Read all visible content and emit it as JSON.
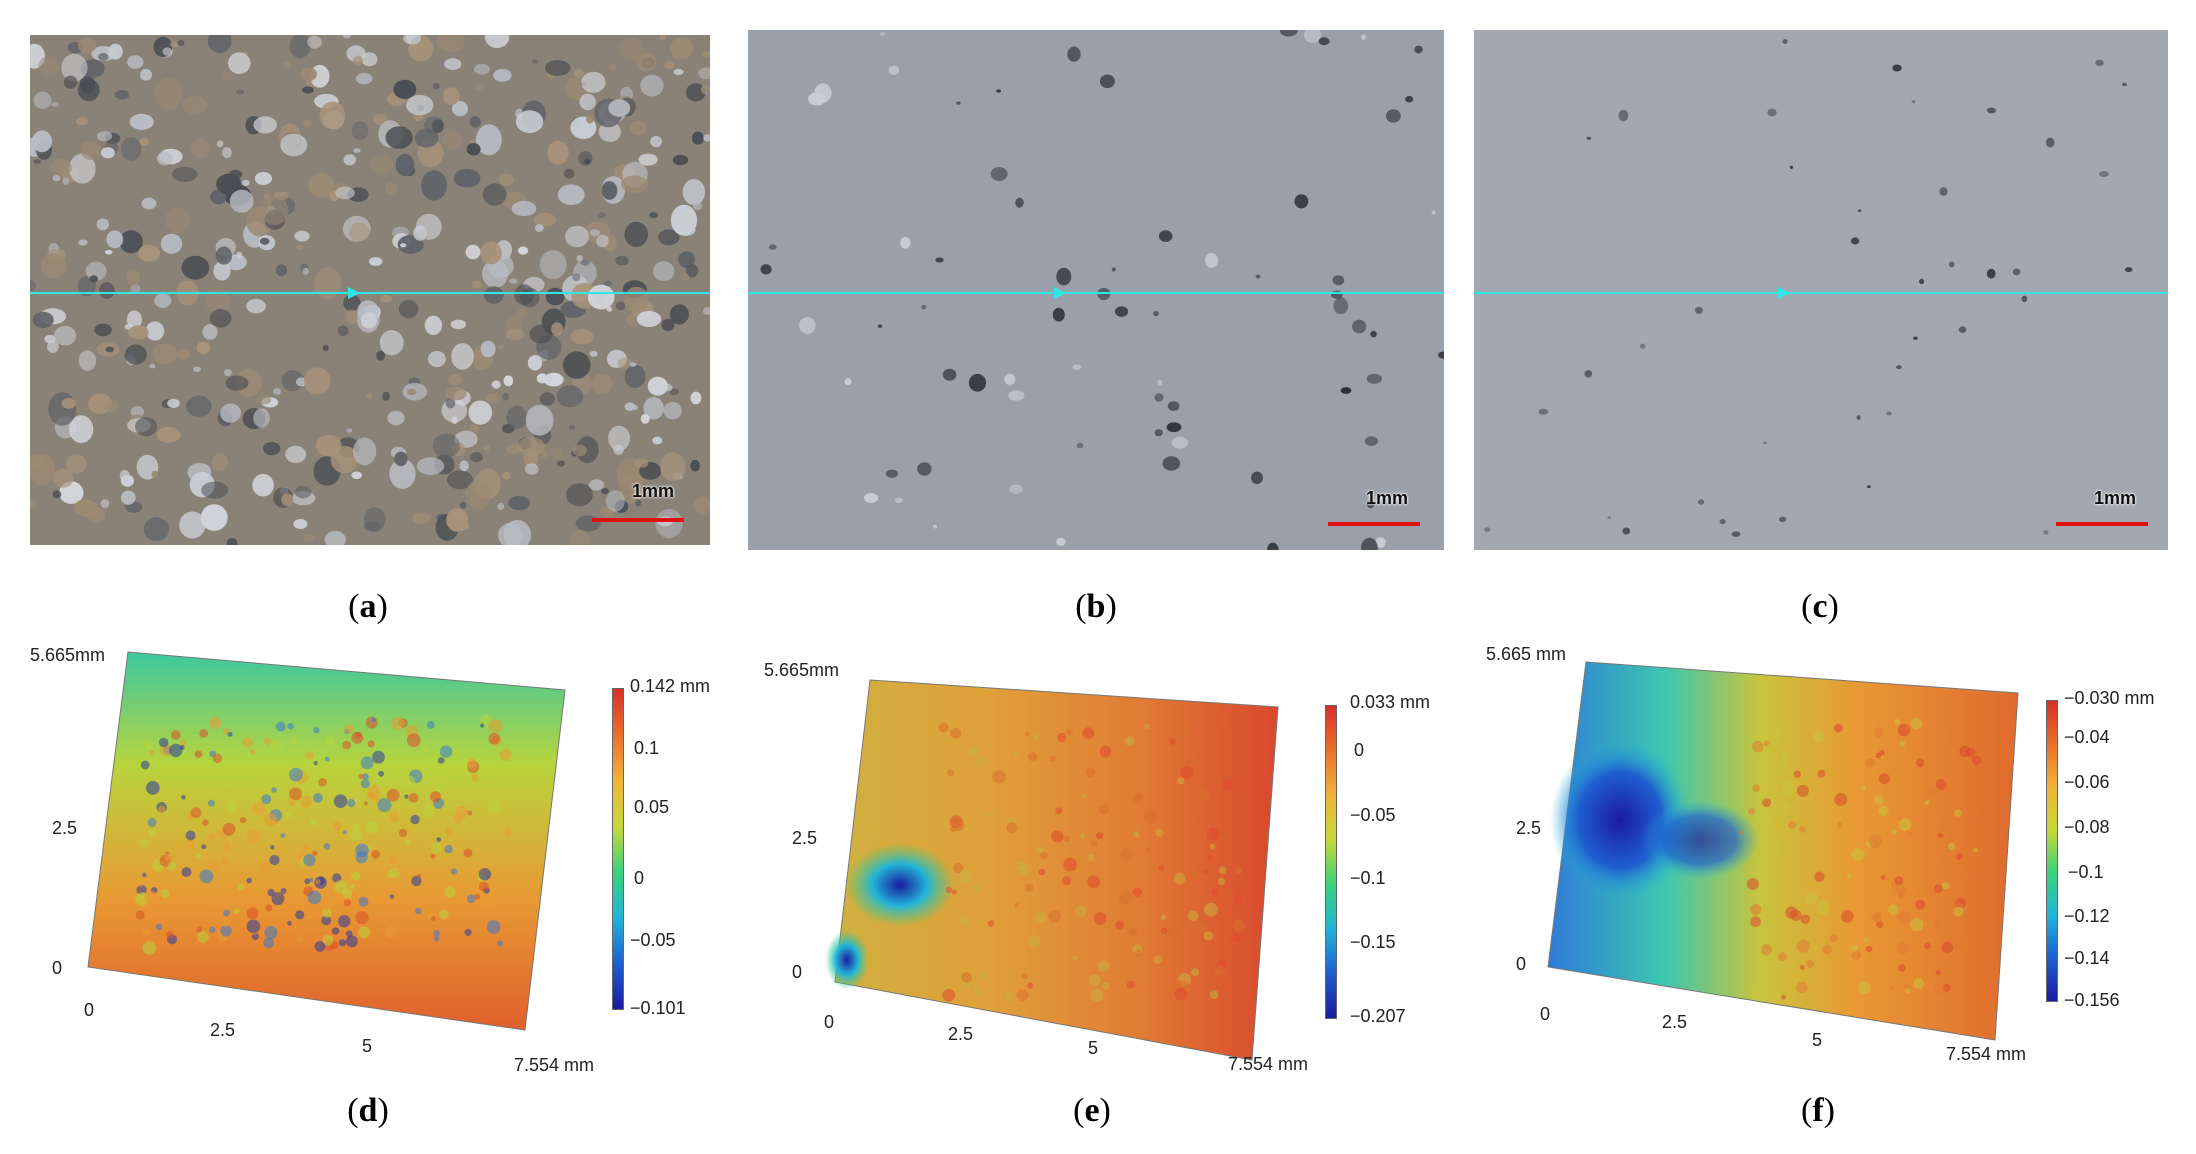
{
  "figure": {
    "captions": [
      "a",
      "b",
      "c",
      "d",
      "e",
      "f"
    ],
    "scale_bar_label": "1mm",
    "colors": {
      "profile_line": "#2ee6e6",
      "scale_bar": "#e01010",
      "colormap": [
        "#1b1b9e",
        "#1f5fd0",
        "#22b4d8",
        "#3cd27a",
        "#c8d83a",
        "#f0b33a",
        "#e8702e",
        "#d8302a"
      ]
    }
  },
  "panels_3d": [
    {
      "id": "d",
      "y_ticks": [
        "5.665mm",
        "2.5",
        "0"
      ],
      "x_ticks": [
        "0",
        "2.5",
        "5",
        "7.554 mm"
      ],
      "colorbar": [
        "0.142 mm",
        "0.1",
        "0.05",
        "0",
        "−0.05",
        "−0.101"
      ]
    },
    {
      "id": "e",
      "y_ticks": [
        "5.665mm",
        "2.5",
        "0"
      ],
      "x_ticks": [
        "0",
        "2.5",
        "5",
        "7.554 mm"
      ],
      "colorbar": [
        "0.033 mm",
        "0",
        "−0.05",
        "−0.1",
        "−0.15",
        "−0.207"
      ]
    },
    {
      "id": "f",
      "y_ticks": [
        "5.665 mm",
        "2.5",
        "0"
      ],
      "x_ticks": [
        "0",
        "2.5",
        "5",
        "7.554 mm"
      ],
      "colorbar": [
        "−0.030 mm",
        "−0.04",
        "−0.06",
        "−0.08",
        "−0.1",
        "−0.12",
        "−0.14",
        "−0.156"
      ]
    }
  ]
}
